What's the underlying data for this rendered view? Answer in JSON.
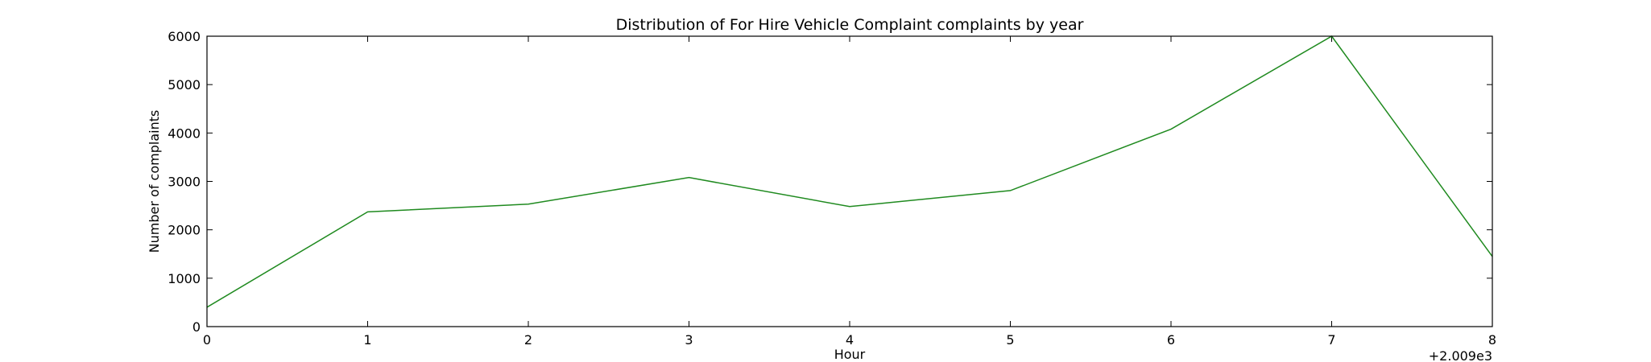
{
  "chart_data": {
    "type": "line",
    "title": "Distribution of  For Hire Vehicle Complaint complaints by year",
    "xlabel": "Hour",
    "ylabel": "Number of complaints",
    "x_offset_label": "+2.009e3",
    "x": [
      0,
      1,
      2,
      3,
      4,
      5,
      6,
      7,
      8
    ],
    "xlim": [
      0,
      8
    ],
    "ylim": [
      0,
      6000
    ],
    "xticks": [
      0,
      1,
      2,
      3,
      4,
      5,
      6,
      7,
      8
    ],
    "yticks": [
      0,
      1000,
      2000,
      3000,
      4000,
      5000,
      6000
    ],
    "grid": false,
    "legend": "none",
    "series": [
      {
        "color": "#1f8a1f",
        "values": [
          400,
          2370,
          2530,
          3080,
          2480,
          2810,
          4080,
          6000,
          1450
        ]
      }
    ]
  }
}
